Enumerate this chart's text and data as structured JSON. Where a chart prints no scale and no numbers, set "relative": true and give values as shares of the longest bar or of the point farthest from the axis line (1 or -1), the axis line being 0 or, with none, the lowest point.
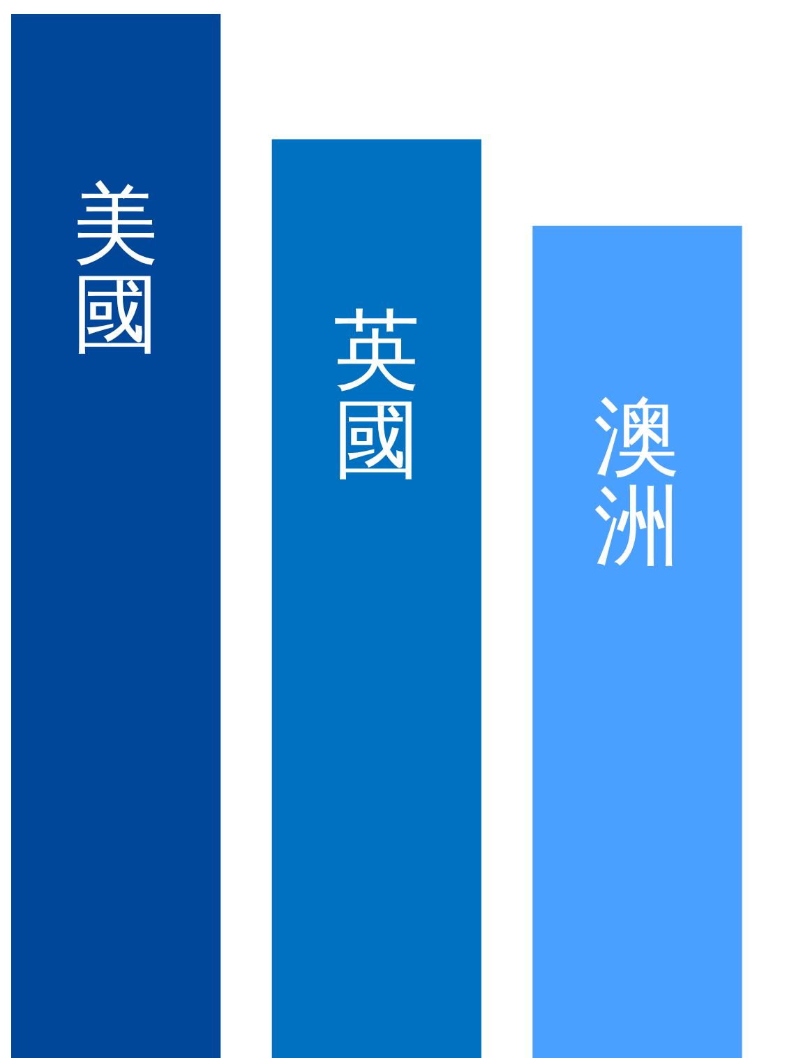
{
  "chart_data": {
    "type": "bar",
    "relative": true,
    "categories": [
      "美國",
      "英國",
      "澳洲"
    ],
    "values": [
      1,
      0.88,
      0.797
    ],
    "colors": [
      "#00479a",
      "#0070c0",
      "#4aa0ff"
    ]
  }
}
